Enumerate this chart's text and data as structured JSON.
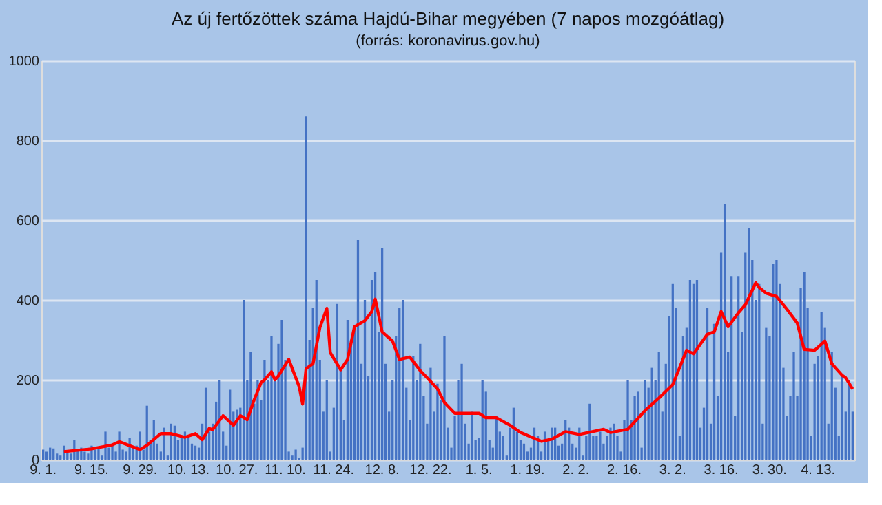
{
  "chart_data": {
    "type": "bar",
    "title": "Az új fertőzöttek száma Hajdú-Bihar megyében (7 napos mozgóátlag)",
    "subtitle": "(forrás: koronavirus.gov.hu)",
    "categories": [
      "9. 1.",
      null,
      null,
      null,
      null,
      null,
      null,
      null,
      null,
      null,
      null,
      null,
      null,
      null,
      "9. 15.",
      null,
      null,
      null,
      null,
      null,
      null,
      null,
      null,
      null,
      null,
      null,
      null,
      null,
      "9. 29.",
      null,
      null,
      null,
      null,
      null,
      null,
      null,
      null,
      null,
      null,
      null,
      null,
      null,
      "10. 13.",
      null,
      null,
      null,
      null,
      null,
      null,
      null,
      null,
      null,
      null,
      null,
      null,
      null,
      "10. 27.",
      null,
      null,
      null,
      null,
      null,
      null,
      null,
      null,
      null,
      null,
      null,
      null,
      null,
      "11. 10.",
      null,
      null,
      null,
      null,
      null,
      null,
      null,
      null,
      null,
      null,
      null,
      null,
      null,
      "11. 24.",
      null,
      null,
      null,
      null,
      null,
      null,
      null,
      null,
      null,
      null,
      null,
      null,
      null,
      "12. 8.",
      null,
      null,
      null,
      null,
      null,
      null,
      null,
      null,
      null,
      null,
      null,
      null,
      null,
      "12. 22.",
      null,
      null,
      null,
      null,
      null,
      null,
      null,
      null,
      null,
      null,
      null,
      null,
      null,
      "1. 5.",
      null,
      null,
      null,
      null,
      null,
      null,
      null,
      null,
      null,
      null,
      null,
      null,
      null,
      "1. 19.",
      null,
      null,
      null,
      null,
      null,
      null,
      null,
      null,
      null,
      null,
      null,
      null,
      null,
      "2. 2.",
      null,
      null,
      null,
      null,
      null,
      null,
      null,
      null,
      null,
      null,
      null,
      null,
      null,
      "2. 16.",
      null,
      null,
      null,
      null,
      null,
      null,
      null,
      null,
      null,
      null,
      null,
      null,
      null,
      "3. 2.",
      null,
      null,
      null,
      null,
      null,
      null,
      null,
      null,
      null,
      null,
      null,
      null,
      null,
      "3. 16.",
      null,
      null,
      null,
      null,
      null,
      null,
      null,
      null,
      null,
      null,
      null,
      null,
      null,
      "3. 30.",
      null,
      null,
      null,
      null,
      null,
      null,
      null,
      null,
      null,
      null,
      null,
      null,
      null,
      "4. 13.",
      null,
      null,
      null,
      null,
      null,
      null,
      null,
      null,
      null,
      null
    ],
    "series": [
      {
        "color": "#4472c4",
        "values": [
          25,
          20,
          30,
          28,
          15,
          10,
          35,
          20,
          15,
          50,
          25,
          30,
          20,
          15,
          35,
          25,
          30,
          10,
          70,
          30,
          40,
          20,
          70,
          25,
          20,
          55,
          30,
          35,
          70,
          25,
          135,
          50,
          100,
          40,
          20,
          80,
          10,
          90,
          85,
          50,
          60,
          70,
          60,
          40,
          35,
          30,
          90,
          180,
          70,
          90,
          145,
          200,
          70,
          35,
          175,
          120,
          125,
          130,
          400,
          200,
          270,
          140,
          200,
          150,
          250,
          200,
          310,
          200,
          290,
          350,
          250,
          20,
          10,
          25,
          5,
          30,
          860,
          300,
          380,
          450,
          250,
          120,
          200,
          20,
          130,
          390,
          230,
          100,
          350,
          300,
          330,
          550,
          240,
          400,
          210,
          450,
          470,
          320,
          530,
          240,
          120,
          200,
          310,
          380,
          400,
          180,
          100,
          260,
          200,
          290,
          160,
          90,
          230,
          120,
          190,
          150,
          310,
          80,
          30,
          110,
          200,
          240,
          90,
          40,
          120,
          50,
          55,
          200,
          170,
          50,
          30,
          110,
          70,
          60,
          10,
          80,
          130,
          70,
          50,
          40,
          20,
          30,
          80,
          60,
          20,
          70,
          50,
          80,
          80,
          35,
          40,
          100,
          80,
          40,
          30,
          80,
          10,
          60,
          140,
          60,
          60,
          70,
          40,
          60,
          80,
          90,
          60,
          20,
          100,
          200,
          100,
          160,
          170,
          30,
          200,
          180,
          230,
          200,
          270,
          120,
          240,
          360,
          440,
          380,
          60,
          310,
          330,
          450,
          440,
          450,
          80,
          130,
          380,
          90,
          340,
          160,
          520,
          640,
          270,
          460,
          110,
          460,
          320,
          520,
          580,
          500,
          400,
          440,
          90,
          330,
          310,
          490,
          500,
          440,
          230,
          110,
          160,
          270,
          160,
          430,
          470,
          380,
          60,
          240,
          260,
          370,
          330,
          90,
          270,
          180,
          60,
          210,
          120,
          200,
          120
        ]
      },
      {
        "type": "line",
        "color": "#ff0000",
        "values": [
          null,
          null,
          null,
          null,
          null,
          null,
          20,
          null,
          null,
          null,
          null,
          null,
          null,
          null,
          27,
          null,
          null,
          null,
          null,
          null,
          37,
          null,
          45,
          null,
          null,
          null,
          null,
          null,
          25,
          null,
          36,
          null,
          null,
          null,
          65,
          null,
          null,
          65,
          null,
          null,
          null,
          56,
          null,
          null,
          65,
          null,
          50,
          null,
          78,
          75,
          null,
          null,
          110,
          null,
          null,
          86,
          null,
          110,
          null,
          100,
          null,
          150,
          null,
          193,
          200,
          null,
          220,
          200,
          210,
          null,
          null,
          251,
          null,
          null,
          183,
          139,
          228,
          null,
          240,
          null,
          331,
          null,
          379,
          268,
          null,
          null,
          225,
          null,
          251,
          null,
          333,
          null,
          null,
          348,
          null,
          371,
          402,
          null,
          320,
          null,
          null,
          297,
          null,
          251,
          null,
          null,
          257,
          null,
          null,
          223,
          null,
          205,
          null,
          null,
          177,
          null,
          143,
          null,
          null,
          116,
          null,
          null,
          null,
          116,
          null,
          null,
          116,
          null,
          105,
          null,
          null,
          105,
          null,
          null,
          null,
          86,
          null,
          null,
          68,
          null,
          null,
          57,
          null,
          null,
          46,
          null,
          null,
          51,
          null,
          null,
          null,
          70,
          null,
          null,
          null,
          63,
          null,
          null,
          null,
          null,
          null,
          null,
          76,
          null,
          68,
          null,
          null,
          null,
          null,
          76,
          null,
          null,
          null,
          null,
          123,
          null,
          null,
          null,
          154,
          null,
          null,
          null,
          188,
          null,
          null,
          null,
          274,
          null,
          265,
          null,
          null,
          null,
          314,
          null,
          320,
          null,
          371,
          null,
          333,
          null,
          null,
          368,
          null,
          388,
          null,
          null,
          443,
          431,
          null,
          417,
          null,
          null,
          409,
          null,
          null,
          377,
          null,
          null,
          342,
          null,
          276,
          null,
          null,
          274,
          null,
          null,
          297,
          null,
          240,
          null,
          null,
          211,
          205,
          null,
          177
        ]
      }
    ],
    "ylim": [
      0,
      1000
    ],
    "yticks": [
      0,
      200,
      400,
      600,
      800,
      1000
    ],
    "grid": "y"
  }
}
